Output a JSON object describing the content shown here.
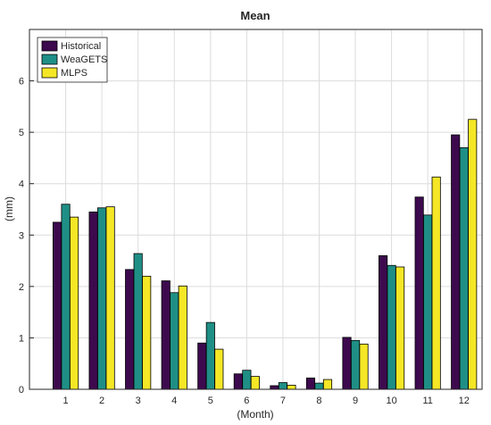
{
  "chart_data": {
    "type": "bar",
    "title": "Mean",
    "xlabel": "(Month)",
    "ylabel": "(mm)",
    "categories": [
      "1",
      "2",
      "3",
      "4",
      "5",
      "6",
      "7",
      "8",
      "9",
      "10",
      "11",
      "12"
    ],
    "ylim": [
      0,
      7
    ],
    "yticks": [
      "0",
      "1",
      "2",
      "3",
      "4",
      "5",
      "6"
    ],
    "grid": true,
    "legend_position": "top-left",
    "series": [
      {
        "name": "Historical",
        "color": "#3d0a4e",
        "values": [
          3.25,
          3.45,
          2.33,
          2.11,
          0.9,
          0.3,
          0.07,
          0.22,
          1.01,
          2.6,
          3.74,
          4.95
        ]
      },
      {
        "name": "WeaGETS",
        "color": "#1f8f86",
        "values": [
          3.6,
          3.53,
          2.64,
          1.88,
          1.3,
          0.37,
          0.13,
          0.12,
          0.95,
          2.41,
          3.39,
          4.7
        ]
      },
      {
        "name": "MLPS",
        "color": "#f5e726",
        "values": [
          3.35,
          3.55,
          2.2,
          2.01,
          0.78,
          0.25,
          0.08,
          0.19,
          0.88,
          2.38,
          4.13,
          5.25
        ]
      }
    ]
  }
}
